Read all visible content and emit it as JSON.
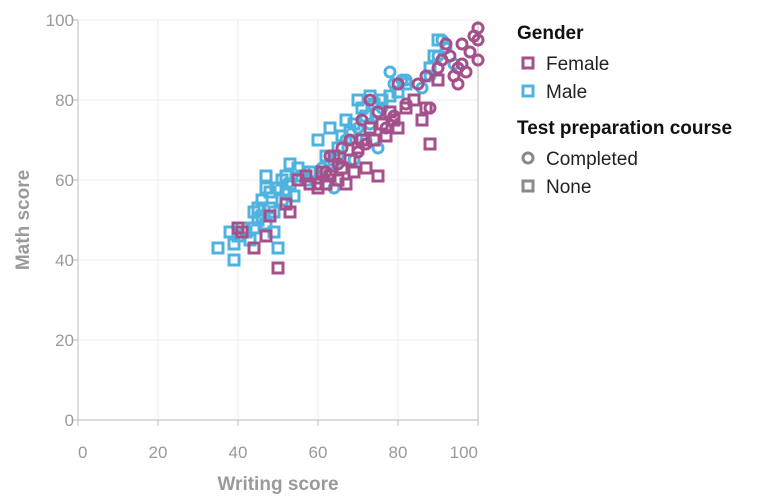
{
  "colors": {
    "female": "#a4508b",
    "male": "#4fb3e0",
    "neutral": "#8a8a8a",
    "grid": "#eeeeee",
    "axis": "#bbbbbb"
  },
  "chart_data": {
    "type": "scatter",
    "xlabel": "Writing score",
    "ylabel": "Math score",
    "xlim": [
      0,
      100
    ],
    "ylim": [
      0,
      100
    ],
    "x_ticks": [
      "0",
      "20",
      "40",
      "60",
      "80",
      "100"
    ],
    "y_ticks": [
      "0",
      "20",
      "40",
      "60",
      "80",
      "100"
    ],
    "grid": true,
    "legend": [
      {
        "title": "Gender",
        "encoding": "color",
        "items": [
          {
            "label": "Female",
            "color": "#a4508b",
            "shape": "square"
          },
          {
            "label": "Male",
            "color": "#4fb3e0",
            "shape": "square"
          }
        ]
      },
      {
        "title": "Test preparation course",
        "encoding": "shape",
        "items": [
          {
            "label": "Completed",
            "color": "#8a8a8a",
            "shape": "circle"
          },
          {
            "label": "None",
            "color": "#8a8a8a",
            "shape": "square"
          }
        ]
      }
    ],
    "legend_position": "right",
    "series": [
      {
        "gender": "Male",
        "prep": "None",
        "points": [
          [
            35,
            43
          ],
          [
            38,
            47
          ],
          [
            39,
            44
          ],
          [
            39,
            40
          ],
          [
            40,
            46
          ],
          [
            41,
            48
          ],
          [
            42,
            47
          ],
          [
            43,
            45
          ],
          [
            44,
            52
          ],
          [
            44,
            48
          ],
          [
            45,
            50
          ],
          [
            45,
            53
          ],
          [
            46,
            55
          ],
          [
            46,
            51
          ],
          [
            47,
            58
          ],
          [
            47,
            61
          ],
          [
            47,
            49
          ],
          [
            48,
            53
          ],
          [
            48,
            57
          ],
          [
            49,
            52
          ],
          [
            49,
            47
          ],
          [
            50,
            43
          ],
          [
            50,
            58
          ],
          [
            51,
            60
          ],
          [
            51,
            55
          ],
          [
            52,
            61
          ],
          [
            52,
            57
          ],
          [
            53,
            64
          ],
          [
            53,
            59
          ],
          [
            54,
            56
          ],
          [
            55,
            63
          ],
          [
            56,
            61
          ],
          [
            57,
            60
          ],
          [
            58,
            62
          ],
          [
            59,
            62
          ],
          [
            60,
            70
          ],
          [
            62,
            66
          ],
          [
            63,
            73
          ],
          [
            64,
            65
          ],
          [
            65,
            68
          ],
          [
            66,
            71
          ],
          [
            67,
            75
          ],
          [
            68,
            72
          ],
          [
            69,
            74
          ],
          [
            70,
            80
          ],
          [
            71,
            78
          ],
          [
            72,
            76
          ],
          [
            73,
            81
          ],
          [
            74,
            79
          ],
          [
            75,
            77
          ],
          [
            76,
            80
          ],
          [
            78,
            81
          ],
          [
            80,
            82
          ],
          [
            82,
            84
          ],
          [
            88,
            88
          ],
          [
            89,
            91
          ],
          [
            90,
            95
          ]
        ]
      },
      {
        "gender": "Male",
        "prep": "Completed",
        "points": [
          [
            61,
            63
          ],
          [
            63,
            64
          ],
          [
            64,
            58
          ],
          [
            65,
            66
          ],
          [
            67,
            70
          ],
          [
            69,
            65
          ],
          [
            70,
            73
          ],
          [
            72,
            70
          ],
          [
            73,
            74
          ],
          [
            75,
            68
          ],
          [
            76,
            78
          ],
          [
            78,
            87
          ],
          [
            79,
            84
          ],
          [
            81,
            85
          ],
          [
            82,
            85
          ],
          [
            86,
            83
          ],
          [
            88,
            86
          ],
          [
            90,
            91
          ],
          [
            91,
            95
          ],
          [
            92,
            93
          ],
          [
            94,
            89
          ]
        ]
      },
      {
        "gender": "Female",
        "prep": "None",
        "points": [
          [
            40,
            48
          ],
          [
            41,
            47
          ],
          [
            44,
            43
          ],
          [
            47,
            46
          ],
          [
            48,
            51
          ],
          [
            50,
            38
          ],
          [
            52,
            54
          ],
          [
            53,
            52
          ],
          [
            55,
            60
          ],
          [
            57,
            61
          ],
          [
            58,
            59
          ],
          [
            60,
            58
          ],
          [
            61,
            62
          ],
          [
            62,
            59
          ],
          [
            63,
            61
          ],
          [
            64,
            66
          ],
          [
            65,
            60
          ],
          [
            66,
            63
          ],
          [
            67,
            59
          ],
          [
            68,
            65
          ],
          [
            69,
            62
          ],
          [
            70,
            68
          ],
          [
            71,
            70
          ],
          [
            72,
            63
          ],
          [
            73,
            73
          ],
          [
            74,
            70
          ],
          [
            75,
            61
          ],
          [
            76,
            74
          ],
          [
            77,
            71
          ],
          [
            78,
            77
          ],
          [
            79,
            75
          ],
          [
            80,
            73
          ],
          [
            82,
            78
          ],
          [
            84,
            80
          ],
          [
            86,
            75
          ],
          [
            87,
            78
          ],
          [
            88,
            69
          ],
          [
            90,
            85
          ]
        ]
      },
      {
        "gender": "Female",
        "prep": "Completed",
        "points": [
          [
            60,
            59
          ],
          [
            62,
            62
          ],
          [
            63,
            66
          ],
          [
            65,
            64
          ],
          [
            66,
            68
          ],
          [
            68,
            70
          ],
          [
            70,
            67
          ],
          [
            71,
            75
          ],
          [
            72,
            69
          ],
          [
            73,
            80
          ],
          [
            75,
            77
          ],
          [
            77,
            73
          ],
          [
            79,
            76
          ],
          [
            80,
            84
          ],
          [
            82,
            79
          ],
          [
            85,
            84
          ],
          [
            87,
            86
          ],
          [
            88,
            78
          ],
          [
            90,
            88
          ],
          [
            91,
            90
          ],
          [
            92,
            94
          ],
          [
            93,
            91
          ],
          [
            94,
            86
          ],
          [
            95,
            84
          ],
          [
            96,
            89
          ],
          [
            97,
            87
          ],
          [
            98,
            92
          ],
          [
            99,
            96
          ],
          [
            100,
            98
          ],
          [
            100,
            95
          ],
          [
            100,
            90
          ],
          [
            95,
            88
          ],
          [
            96,
            94
          ]
        ]
      }
    ]
  }
}
